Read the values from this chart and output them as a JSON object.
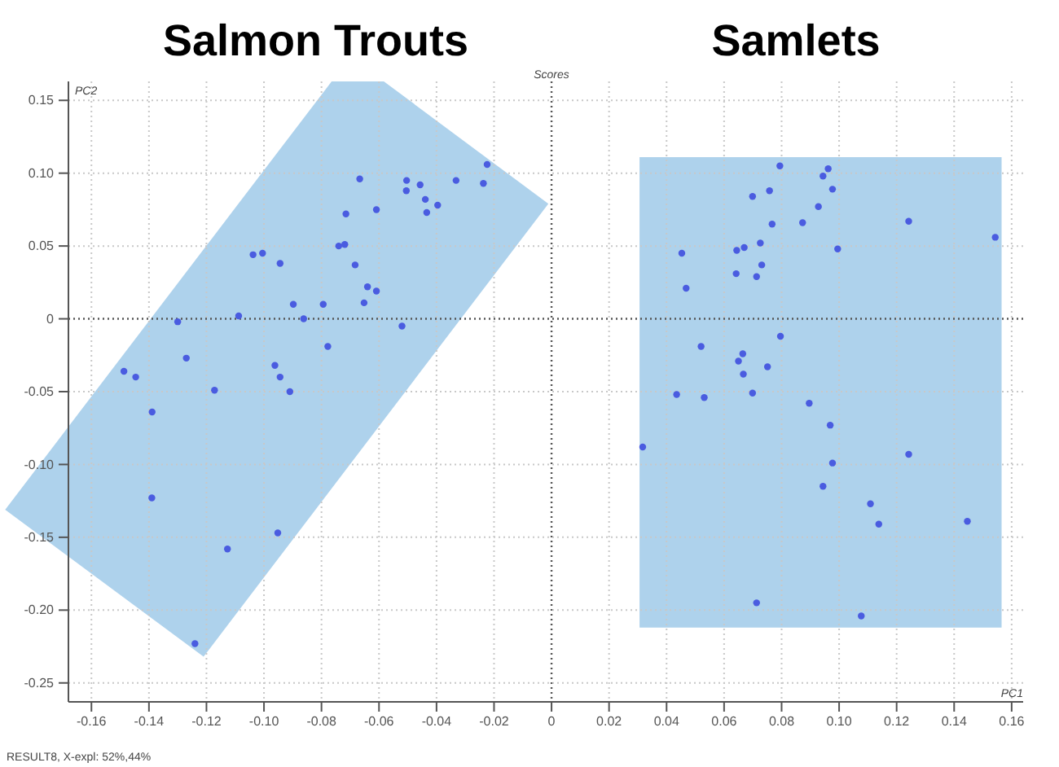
{
  "chart_data": {
    "type": "scatter",
    "title": "Scores",
    "xlabel": "PC1",
    "ylabel": "PC2",
    "annotations": [
      "Salmon Trouts",
      "Samlets",
      "RESULT8, X-expl: 52%,44%"
    ],
    "xlim": [
      -0.168,
      0.164
    ],
    "ylim": [
      -0.263,
      0.163
    ],
    "xticks": [
      -0.16,
      -0.14,
      -0.12,
      {
        "value": -0.1,
        "label": "-0.10"
      },
      -0.08,
      -0.06,
      -0.04,
      -0.02,
      0,
      0.02,
      0.04,
      0.06,
      0.08,
      {
        "value": 0.1,
        "label": "0.10"
      },
      0.12,
      0.14,
      0.16
    ],
    "yticks": [
      -0.25,
      {
        "value": -0.2,
        "label": "-0.20"
      },
      -0.15,
      {
        "value": -0.1,
        "label": "-0.10"
      },
      -0.05,
      0,
      0.05,
      {
        "value": 0.1,
        "label": "0.10"
      },
      0.15
    ],
    "grid": true,
    "marker": "circle",
    "series": [
      {
        "color": "#4a5ce0",
        "x": [
          -0.0224,
          -0.0237,
          -0.0332,
          -0.0396,
          -0.0439,
          -0.0434,
          -0.0457,
          -0.0504,
          -0.0505,
          -0.0609,
          -0.0667,
          -0.0715,
          -0.0719,
          -0.074,
          -0.0683,
          -0.064,
          -0.0609,
          -0.0652,
          -0.0794,
          -0.0898,
          -0.0944,
          -0.1005,
          -0.1038,
          -0.1088,
          -0.0862,
          -0.13,
          -0.052,
          -0.0778,
          -0.127,
          -0.1487,
          -0.1446,
          -0.0962,
          -0.0944,
          -0.1172,
          -0.091,
          -0.1389,
          -0.139,
          -0.0952,
          -0.1127,
          -0.124
        ],
        "values": [
          0.106,
          0.093,
          0.095,
          0.078,
          0.082,
          0.073,
          0.092,
          0.095,
          0.088,
          0.075,
          0.096,
          0.072,
          0.051,
          0.05,
          0.037,
          0.022,
          0.019,
          0.011,
          0.01,
          0.01,
          0.038,
          0.045,
          0.044,
          0.002,
          0.0,
          -0.002,
          -0.005,
          -0.019,
          -0.027,
          -0.036,
          -0.04,
          -0.032,
          -0.04,
          -0.049,
          -0.05,
          -0.064,
          -0.123,
          -0.147,
          -0.158,
          -0.223
        ]
      },
      {
        "color": "#4a5ce0",
        "x": [
          0.0794,
          0.0962,
          0.0944,
          0.0977,
          0.0758,
          0.0699,
          0.0928,
          0.0873,
          0.0767,
          0.1242,
          0.1543,
          0.0995,
          0.0726,
          0.067,
          0.0644,
          0.0453,
          0.0731,
          0.0642,
          0.0713,
          0.0468,
          0.0796,
          0.052,
          0.0665,
          0.065,
          0.0667,
          0.0751,
          0.0435,
          0.0531,
          0.0699,
          0.0896,
          0.0969,
          0.0317,
          0.1242,
          0.0977,
          0.0944,
          0.1109,
          0.1138,
          0.1446,
          0.0713,
          0.1077
        ],
        "values": [
          0.105,
          0.103,
          0.098,
          0.089,
          0.088,
          0.084,
          0.077,
          0.066,
          0.065,
          0.067,
          0.056,
          0.048,
          0.052,
          0.049,
          0.047,
          0.045,
          0.037,
          0.031,
          0.029,
          0.021,
          -0.012,
          -0.019,
          -0.024,
          -0.029,
          -0.038,
          -0.033,
          -0.052,
          -0.054,
          -0.051,
          -0.058,
          -0.073,
          -0.088,
          -0.093,
          -0.099,
          -0.115,
          -0.127,
          -0.141,
          -0.139,
          -0.195,
          -0.204
        ]
      }
    ]
  }
}
